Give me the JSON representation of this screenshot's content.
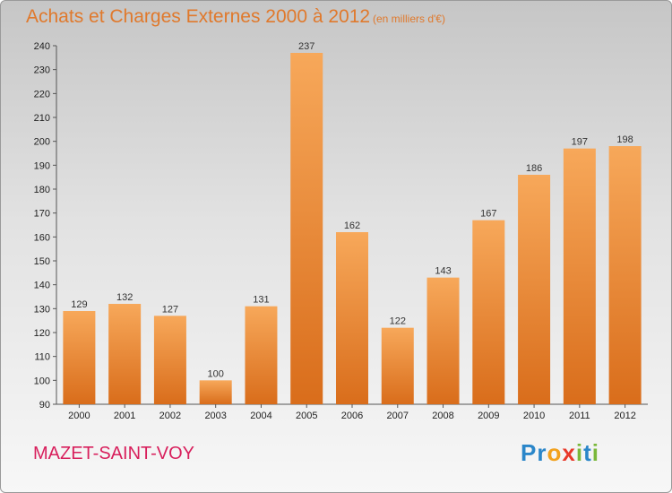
{
  "title": "Achats et Charges Externes 2000 à 2012",
  "subtitle": "(en milliers d'€)",
  "town": "MAZET-SAINT-VOY",
  "brand": {
    "letters": [
      "P",
      "r",
      "o",
      "x",
      "i",
      "t",
      "i"
    ],
    "colors": [
      "#2a86c9",
      "#2a86c9",
      "#f2a11d",
      "#e8392a",
      "#7ab83b",
      "#2a86c9",
      "#7ab83b"
    ]
  },
  "colors": {
    "bar_light": "#f7a85a",
    "bar_dark": "#d96d1b",
    "title": "#e0792c",
    "town": "#d81f5c"
  },
  "chart_data": {
    "type": "bar",
    "title": "Achats et Charges Externes 2000 à 2012",
    "unit": "(en milliers d'€)",
    "categories": [
      "2000",
      "2001",
      "2002",
      "2003",
      "2004",
      "2005",
      "2006",
      "2007",
      "2008",
      "2009",
      "2010",
      "2011",
      "2012"
    ],
    "values": [
      129,
      132,
      127,
      100,
      131,
      237,
      162,
      122,
      143,
      167,
      186,
      197,
      198
    ],
    "ylim": [
      90,
      240
    ],
    "yticks": [
      90,
      100,
      110,
      120,
      130,
      140,
      150,
      160,
      170,
      180,
      190,
      200,
      210,
      220,
      230,
      240
    ],
    "grid": false,
    "legend": "none"
  }
}
